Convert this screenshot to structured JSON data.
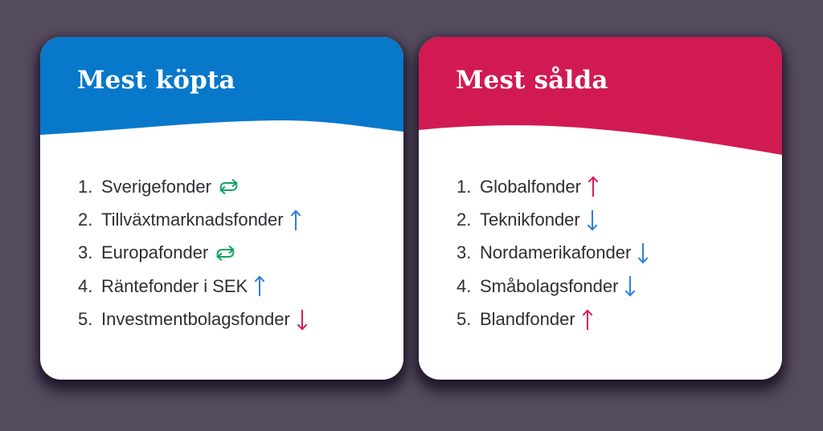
{
  "page": {
    "background_color": "#554b5e",
    "card_color": "#ffffff"
  },
  "cards": [
    {
      "id": "most-bought",
      "title": "Mest köpta",
      "header_color": "#0878cb",
      "items": [
        {
          "rank": "1.",
          "label": "Sverigefonder",
          "trend": "swap",
          "trend_color": "#10a35f"
        },
        {
          "rank": "2.",
          "label": "Tillväxtmarknadsfonder",
          "trend": "up",
          "trend_color": "#2f7fd6"
        },
        {
          "rank": "3.",
          "label": "Europafonder",
          "trend": "swap",
          "trend_color": "#10a35f"
        },
        {
          "rank": "4.",
          "label": "Räntefonder i SEK",
          "trend": "up",
          "trend_color": "#2f7fd6"
        },
        {
          "rank": "5.",
          "label": "Investmentbolagsfonder",
          "trend": "down",
          "trend_color": "#dc1a5e"
        }
      ]
    },
    {
      "id": "most-sold",
      "title": "Mest sålda",
      "header_color": "#d11a52",
      "items": [
        {
          "rank": "1.",
          "label": "Globalfonder",
          "trend": "up",
          "trend_color": "#dc1a5e"
        },
        {
          "rank": "2.",
          "label": "Teknikfonder",
          "trend": "down",
          "trend_color": "#2f7fd6"
        },
        {
          "rank": "3.",
          "label": "Nordamerikafonder",
          "trend": "down",
          "trend_color": "#2f7fd6"
        },
        {
          "rank": "4.",
          "label": "Småbolagsfonder",
          "trend": "down",
          "trend_color": "#2f7fd6"
        },
        {
          "rank": "5.",
          "label": "Blandfonder",
          "trend": "up",
          "trend_color": "#dc1a5e"
        }
      ]
    }
  ],
  "chart_data": [
    {
      "type": "table",
      "title": "Mest köpta",
      "categories": [
        "Sverigefonder",
        "Tillväxtmarknadsfonder",
        "Europafonder",
        "Räntefonder i SEK",
        "Investmentbolagsfonder"
      ],
      "ranks": [
        1,
        2,
        3,
        4,
        5
      ],
      "trends": [
        "unchanged",
        "up",
        "unchanged",
        "up",
        "down"
      ]
    },
    {
      "type": "table",
      "title": "Mest sålda",
      "categories": [
        "Globalfonder",
        "Teknikfonder",
        "Nordamerikafonder",
        "Småbolagsfonder",
        "Blandfonder"
      ],
      "ranks": [
        1,
        2,
        3,
        4,
        5
      ],
      "trends": [
        "up",
        "down",
        "down",
        "down",
        "up"
      ]
    }
  ]
}
